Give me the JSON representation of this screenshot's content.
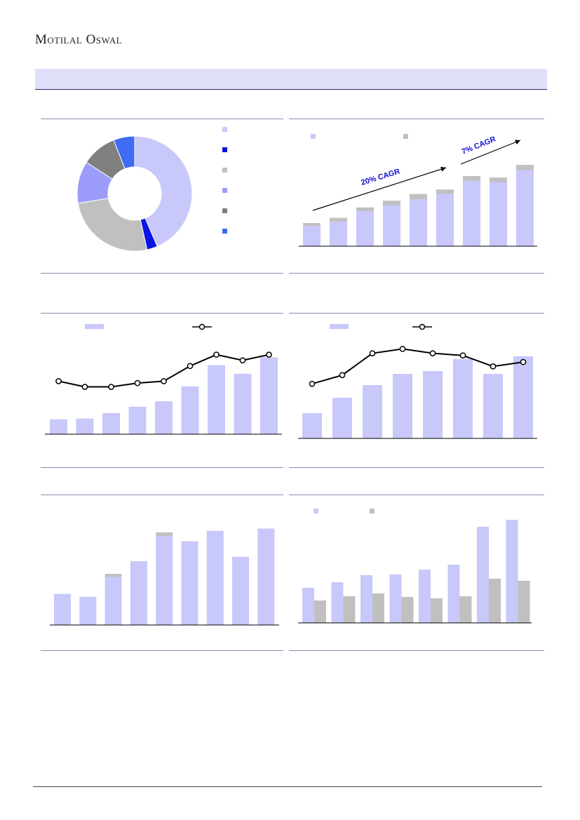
{
  "header": {
    "brand": "Motilal Oswal"
  },
  "colors": {
    "band": "#e0e0fb",
    "lavender": "#c8c8fb",
    "blue": "#0a14e6",
    "light_gray": "#c0c0c0",
    "periwinkle": "#9c9cfb",
    "dark_gray": "#808080",
    "mid_blue": "#3f6bf5",
    "line": "#000000"
  },
  "chart_data": [
    {
      "id": "donut",
      "type": "pie",
      "slices": [
        {
          "value": 44,
          "color": "#c8c8fb"
        },
        {
          "value": 3,
          "color": "#0a14e6"
        },
        {
          "value": 26,
          "color": "#c0c0c0"
        },
        {
          "value": 12,
          "color": "#9c9cfb"
        },
        {
          "value": 10,
          "color": "#808080"
        },
        {
          "value": 6,
          "color": "#3f6bf5"
        }
      ],
      "legend_colors": [
        "#c8c8fb",
        "#0a14e6",
        "#c0c0c0",
        "#9c9cfb",
        "#808080",
        "#3f6bf5"
      ]
    },
    {
      "id": "stacked-cagr",
      "type": "bar",
      "series": [
        {
          "values": [
            27,
            33,
            47,
            55,
            63,
            70,
            88,
            86,
            102
          ],
          "color": "#c8c8fb"
        },
        {
          "values": [
            4,
            5,
            5,
            6,
            7,
            6,
            6,
            6,
            7
          ],
          "color": "#c0c0c0"
        }
      ],
      "ylim": [
        0,
        110
      ],
      "annotations": [
        "20% CAGR",
        "7% CAGR"
      ]
    },
    {
      "id": "bar-line-1",
      "type": "bar",
      "bars": [
        19,
        20,
        27,
        35,
        42,
        61,
        88,
        77,
        98
      ],
      "line": [
        28,
        25,
        25,
        27,
        28,
        36,
        42,
        39,
        42
      ],
      "bar_ylim": [
        0,
        110
      ],
      "line_ylim": [
        0,
        50
      ]
    },
    {
      "id": "bar-line-2",
      "type": "bar",
      "bars": [
        36,
        58,
        76,
        92,
        96,
        113,
        92,
        117
      ],
      "line": [
        25,
        29,
        39,
        41,
        39,
        38,
        33,
        35
      ],
      "bar_ylim": [
        0,
        130
      ],
      "line_ylim": [
        0,
        45
      ]
    },
    {
      "id": "stacked-2",
      "type": "bar",
      "series": [
        {
          "values": [
            42,
            38,
            65,
            86,
            120,
            113,
            127,
            92,
            130
          ],
          "color": "#c8c8fb"
        },
        {
          "values": [
            0,
            0,
            4,
            0,
            5,
            0,
            0,
            0,
            0
          ],
          "color": "#c0c0c0"
        }
      ],
      "ylim": [
        0,
        140
      ]
    },
    {
      "id": "grouped",
      "type": "bar",
      "series": [
        {
          "values": [
            50,
            58,
            68,
            69,
            76,
            83,
            137,
            147
          ],
          "color": "#c8c8fb"
        },
        {
          "values": [
            32,
            38,
            42,
            37,
            35,
            38,
            63,
            60
          ],
          "color": "#c0c0c0"
        }
      ],
      "ylim": [
        0,
        160
      ]
    }
  ]
}
